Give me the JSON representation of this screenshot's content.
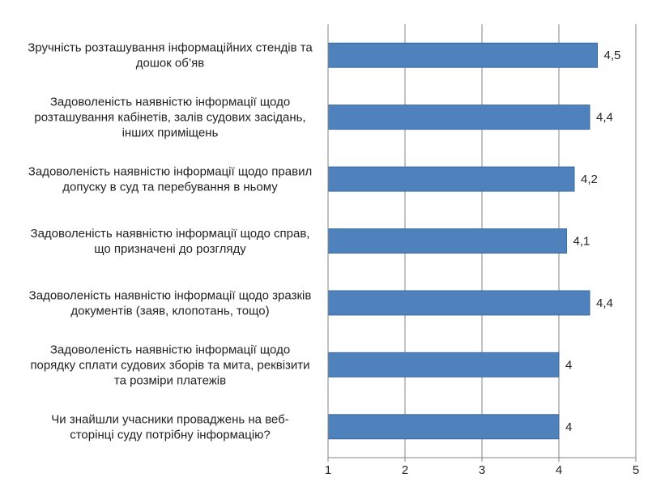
{
  "chart_data": {
    "type": "bar",
    "orientation": "horizontal",
    "categories": [
      [
        "Зручність розташування інформаційних стендів та",
        "дошок об’яв"
      ],
      [
        "Задоволеність наявністю інформації щодо",
        "розташування кабінетів, залів судових засідань,",
        "інших приміщень"
      ],
      [
        "Задоволеність наявністю інформації щодо правил",
        "допуску в суд та перебування в ньому"
      ],
      [
        "Задоволеність наявністю інформації щодо справ,",
        "що призначені до розгляду"
      ],
      [
        "Задоволеність наявністю інформації щодо зразків",
        "документів (заяв, клопотань, тощо)"
      ],
      [
        "Задоволеність наявністю інформації щодо",
        "порядку сплати судових зборів та мита, реквізити",
        "та розміри платежів"
      ],
      [
        "Чи знайшли учасники проваджень на веб-",
        "сторінці суду потрібну інформацію?"
      ]
    ],
    "values": [
      4.5,
      4.4,
      4.2,
      4.1,
      4.4,
      4,
      4
    ],
    "value_labels": [
      "4,5",
      "4,4",
      "4,2",
      "4,1",
      "4,4",
      "4",
      "4"
    ],
    "xlim": [
      1,
      5
    ],
    "ticks": [
      "1",
      "2",
      "3",
      "4",
      "5"
    ],
    "gridlines": true,
    "bar_color": "#4F81BD",
    "bar_border_color": "#3A6A9F",
    "grid_color": "#868686"
  }
}
